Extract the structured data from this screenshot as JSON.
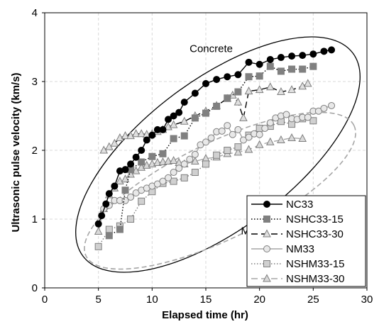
{
  "chart_data": {
    "type": "line",
    "xlabel": "Elapsed time (hr)",
    "ylabel": "Ultrasonic pulse velocity (km/s)",
    "xlim": [
      0,
      30
    ],
    "ylim": [
      0,
      4
    ],
    "xticks": [
      0,
      5,
      10,
      15,
      20,
      25,
      30
    ],
    "yticks": [
      0,
      1,
      2,
      3,
      4
    ],
    "grid": "dashed",
    "legend_position": "bottom-right",
    "annotations": [
      {
        "text": "Concrete",
        "x": 15.5,
        "y": 3.43
      },
      {
        "text": "Mortar",
        "x": 19.7,
        "y": 0.78
      }
    ],
    "series": [
      {
        "name": "NC33",
        "style": "solid",
        "color": "#000000",
        "marker": "circle",
        "marker_fill": "#000000",
        "x": [
          5.0,
          5.3,
          5.7,
          6.0,
          6.5,
          7.0,
          7.5,
          8.0,
          8.5,
          9.0,
          9.5,
          10.0,
          10.5,
          11.0,
          11.5,
          12.0,
          12.5,
          13.0,
          14.0,
          15.0,
          16.0,
          17.0,
          18.0,
          19.0,
          20.0,
          21.0,
          22.0,
          23.0,
          24.0,
          25.0,
          26.0,
          26.7
        ],
        "y": [
          0.93,
          1.05,
          1.22,
          1.37,
          1.48,
          1.7,
          1.72,
          1.8,
          1.9,
          2.0,
          2.15,
          2.22,
          2.3,
          2.3,
          2.45,
          2.5,
          2.55,
          2.7,
          2.83,
          2.97,
          3.03,
          3.07,
          3.1,
          3.28,
          3.25,
          3.32,
          3.35,
          3.37,
          3.38,
          3.4,
          3.44,
          3.46
        ]
      },
      {
        "name": "NSHC33-15",
        "style": "dotted",
        "color": "#000000",
        "marker": "square",
        "marker_fill": "#808080",
        "x": [
          6.0,
          7.0,
          7.5,
          8.0,
          9.0,
          10.0,
          11.0,
          12.0,
          13.0,
          14.0,
          15.0,
          16.0,
          17.0,
          18.0,
          19.0,
          20.0,
          21.0,
          22.0,
          23.0,
          24.0,
          25.0
        ],
        "y": [
          0.76,
          0.85,
          1.42,
          1.72,
          1.83,
          1.91,
          1.95,
          2.17,
          2.21,
          2.47,
          2.54,
          2.64,
          2.76,
          2.85,
          3.07,
          3.08,
          3.22,
          3.15,
          3.18,
          3.18,
          3.22
        ]
      },
      {
        "name": "NSHC33-30",
        "style": "dashed",
        "color": "#000000",
        "marker": "triangle",
        "marker_fill": "#e0e0e0",
        "x": [
          5.5,
          6.0,
          6.5,
          7.0,
          7.5,
          8.0,
          8.5,
          9.0,
          9.5,
          10.0,
          10.5,
          11.0,
          11.5,
          12.0,
          13.0,
          14.0,
          15.0,
          16.0,
          17.0,
          17.5,
          18.0,
          18.5,
          19.0,
          20.0,
          21.0,
          22.0,
          23.0,
          24.0,
          24.5
        ],
        "y": [
          2.0,
          2.05,
          2.1,
          2.18,
          2.21,
          2.21,
          2.24,
          2.24,
          2.23,
          2.24,
          2.27,
          2.3,
          2.34,
          2.37,
          2.42,
          2.5,
          2.57,
          2.65,
          2.75,
          2.8,
          2.7,
          2.47,
          2.86,
          2.88,
          2.92,
          2.85,
          2.88,
          2.93,
          2.97
        ]
      },
      {
        "name": "NM33",
        "style": "solid",
        "color": "#a6a6a6",
        "marker": "circle",
        "marker_fill": "#e8e8e8",
        "x": [
          5.5,
          6.0,
          6.5,
          7.0,
          7.5,
          8.0,
          8.5,
          9.0,
          9.5,
          10.0,
          10.5,
          11.0,
          11.5,
          12.0,
          12.5,
          13.0,
          13.5,
          14.0,
          14.5,
          15.0,
          15.5,
          16.0,
          16.5,
          17.0,
          17.5,
          18.0,
          18.5,
          19.0,
          19.5,
          20.0,
          20.5,
          21.0,
          21.5,
          22.0,
          22.5,
          23.0,
          23.5,
          24.0,
          24.5,
          25.0,
          25.5,
          26.0,
          26.7
        ],
        "y": [
          1.15,
          1.2,
          1.27,
          1.27,
          1.27,
          1.32,
          1.38,
          1.42,
          1.45,
          1.48,
          1.51,
          1.55,
          1.6,
          1.68,
          1.74,
          1.8,
          1.87,
          1.94,
          2.08,
          2.12,
          2.18,
          2.27,
          2.28,
          2.36,
          2.23,
          2.3,
          2.15,
          2.19,
          2.24,
          2.23,
          2.32,
          2.4,
          2.47,
          2.5,
          2.52,
          2.46,
          2.45,
          2.48,
          2.48,
          2.57,
          2.57,
          2.61,
          2.65
        ]
      },
      {
        "name": "NSHM33-15",
        "style": "dotted",
        "color": "#7f7f7f",
        "marker": "square",
        "marker_fill": "#d0d0d0",
        "x": [
          5.0,
          6.0,
          7.0,
          8.0,
          9.0,
          10.0,
          11.0,
          12.0,
          13.0,
          14.0,
          15.0,
          16.0,
          17.0,
          18.0,
          19.0,
          20.0,
          21.0,
          22.0,
          23.0,
          24.0,
          25.0
        ],
        "y": [
          0.6,
          0.85,
          0.9,
          1.0,
          1.26,
          1.4,
          1.52,
          1.55,
          1.6,
          1.68,
          1.8,
          1.93,
          2.0,
          2.05,
          2.22,
          2.32,
          2.35,
          2.42,
          2.38,
          2.46,
          2.43
        ]
      },
      {
        "name": "NSHM33-30",
        "style": "dashed",
        "color": "#a6a6a6",
        "marker": "triangle",
        "marker_fill": "#d9d9d9",
        "x": [
          5.0,
          5.5,
          6.0,
          6.5,
          7.0,
          7.5,
          8.0,
          8.5,
          9.0,
          9.5,
          10.0,
          10.5,
          11.0,
          11.5,
          12.0,
          12.5,
          13.0,
          14.0,
          15.0,
          16.0,
          17.0,
          18.0,
          19.0,
          20.0,
          21.0,
          22.0,
          23.0,
          24.0
        ],
        "y": [
          0.82,
          1.15,
          1.35,
          1.45,
          1.55,
          1.58,
          1.65,
          1.7,
          1.75,
          1.78,
          1.8,
          1.82,
          1.83,
          1.84,
          1.85,
          1.82,
          1.8,
          1.84,
          1.88,
          1.9,
          1.95,
          1.97,
          2.01,
          2.08,
          2.12,
          2.15,
          2.18,
          2.17
        ]
      }
    ]
  }
}
